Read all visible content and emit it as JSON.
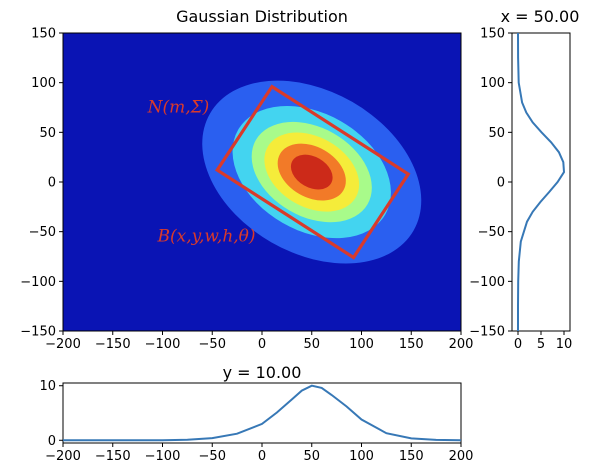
{
  "chart_data": [
    {
      "type": "heatmap",
      "title": "Gaussian Distribution",
      "xlim": [
        -200,
        200
      ],
      "ylim": [
        -150,
        150
      ],
      "xticks": [
        -200,
        -150,
        -100,
        -50,
        0,
        50,
        100,
        150,
        200
      ],
      "yticks": [
        -150,
        -100,
        -50,
        0,
        50,
        100,
        150
      ],
      "background_color": "#0a14b4",
      "colormap": "jet",
      "gaussian": {
        "mean": [
          50,
          10
        ],
        "peak": 10,
        "sigma_major": 55,
        "sigma_minor": 38,
        "rotation_deg": -30
      },
      "contour_levels": [
        {
          "level": 1,
          "color": "#2a5ff0"
        },
        {
          "level": 3,
          "color": "#43d4f0"
        },
        {
          "level": 5,
          "color": "#a8fb8a"
        },
        {
          "level": 6.5,
          "color": "#f5ec3a"
        },
        {
          "level": 8,
          "color": "#f27a28"
        },
        {
          "level": 9.2,
          "color": "#cc2a19"
        }
      ],
      "box": {
        "corners": [
          [
            10,
            96
          ],
          [
            147,
            8
          ],
          [
            92,
            -76
          ],
          [
            -45,
            12
          ]
        ],
        "color": "#d93a2b"
      },
      "annotations": [
        {
          "text": "N(m,Σ)",
          "x": -115,
          "y": 70,
          "color": "#d93a2b"
        },
        {
          "text": "B(x,y,w,h,θ)",
          "x": -105,
          "y": -60,
          "color": "#d93a2b"
        }
      ]
    },
    {
      "type": "line",
      "title": "x = 50.00",
      "orientation": "vertical",
      "xlim": [
        0,
        10
      ],
      "ylim": [
        -150,
        150
      ],
      "xticks": [
        0,
        5,
        10
      ],
      "yticks": [
        -150,
        -100,
        -50,
        0,
        50,
        100,
        150
      ],
      "series": [
        {
          "color": "#3778b6",
          "y": [
            -150,
            -125,
            -100,
            -80,
            -60,
            -40,
            -30,
            -20,
            -10,
            0,
            10,
            20,
            30,
            40,
            50,
            60,
            70,
            80,
            100,
            125,
            150
          ],
          "x": [
            0.0,
            0.01,
            0.05,
            0.18,
            0.6,
            1.95,
            3.2,
            4.9,
            6.8,
            8.6,
            10.0,
            9.85,
            8.9,
            7.2,
            5.1,
            3.2,
            1.8,
            0.9,
            0.15,
            0.02,
            0.0
          ]
        }
      ]
    },
    {
      "type": "line",
      "title": "y = 10.00",
      "xlim": [
        -200,
        200
      ],
      "ylim": [
        -0.5,
        10.5
      ],
      "xticks": [
        -200,
        -150,
        -100,
        -50,
        0,
        50,
        100,
        150,
        200
      ],
      "yticks": [
        0,
        10
      ],
      "series": [
        {
          "color": "#3778b6",
          "x": [
            -200,
            -150,
            -100,
            -75,
            -50,
            -25,
            0,
            15,
            30,
            40,
            50,
            60,
            70,
            85,
            100,
            125,
            150,
            175,
            200
          ],
          "y": [
            0.0,
            0.0,
            0.02,
            0.1,
            0.4,
            1.2,
            3.0,
            5.1,
            7.5,
            9.1,
            10.0,
            9.6,
            8.3,
            6.2,
            3.8,
            1.3,
            0.35,
            0.07,
            0.01
          ]
        }
      ]
    }
  ]
}
